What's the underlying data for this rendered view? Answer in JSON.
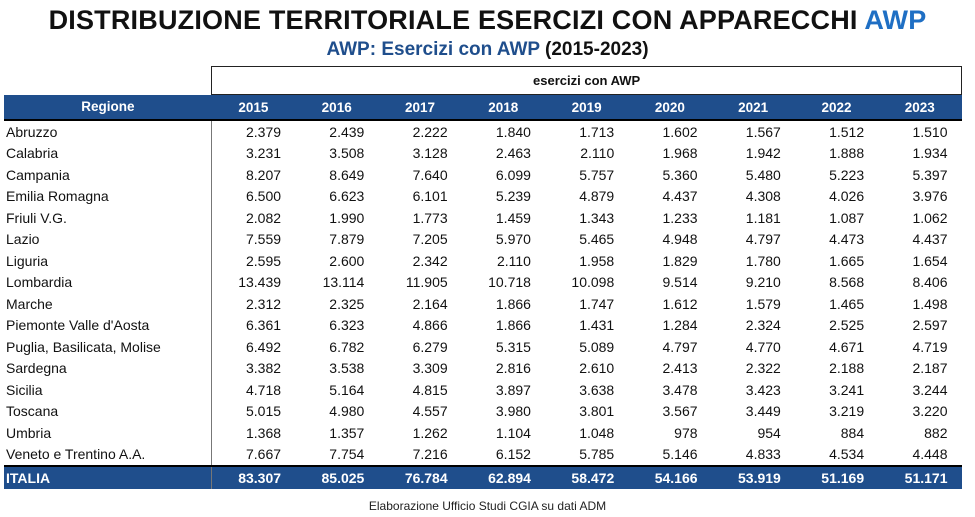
{
  "title": {
    "main": "DISTRIBUZIONE TERRITORIALE ESERCIZI CON APPARECCHI",
    "accent": "AWP"
  },
  "subtitle": {
    "accent": "AWP: Esercizi con AWP",
    "rest": "(2015-2023)"
  },
  "source": "Elaborazione Ufficio Studi CGIA su dati ADM",
  "colors": {
    "header_bg": "#1f4e8c",
    "title_accent": "#1f6fc4"
  },
  "chart_data": {
    "type": "table",
    "group_header": "esercizi con AWP",
    "columns": [
      "Regione",
      "2015",
      "2016",
      "2017",
      "2018",
      "2019",
      "2020",
      "2021",
      "2022",
      "2023"
    ],
    "rows": [
      [
        "Abruzzo",
        "2.379",
        "2.439",
        "2.222",
        "1.840",
        "1.713",
        "1.602",
        "1.567",
        "1.512",
        "1.510"
      ],
      [
        "Calabria",
        "3.231",
        "3.508",
        "3.128",
        "2.463",
        "2.110",
        "1.968",
        "1.942",
        "1.888",
        "1.934"
      ],
      [
        "Campania",
        "8.207",
        "8.649",
        "7.640",
        "6.099",
        "5.757",
        "5.360",
        "5.480",
        "5.223",
        "5.397"
      ],
      [
        "Emilia Romagna",
        "6.500",
        "6.623",
        "6.101",
        "5.239",
        "4.879",
        "4.437",
        "4.308",
        "4.026",
        "3.976"
      ],
      [
        "Friuli V.G.",
        "2.082",
        "1.990",
        "1.773",
        "1.459",
        "1.343",
        "1.233",
        "1.181",
        "1.087",
        "1.062"
      ],
      [
        "Lazio",
        "7.559",
        "7.879",
        "7.205",
        "5.970",
        "5.465",
        "4.948",
        "4.797",
        "4.473",
        "4.437"
      ],
      [
        "Liguria",
        "2.595",
        "2.600",
        "2.342",
        "2.110",
        "1.958",
        "1.829",
        "1.780",
        "1.665",
        "1.654"
      ],
      [
        "Lombardia",
        "13.439",
        "13.114",
        "11.905",
        "10.718",
        "10.098",
        "9.514",
        "9.210",
        "8.568",
        "8.406"
      ],
      [
        "Marche",
        "2.312",
        "2.325",
        "2.164",
        "1.866",
        "1.747",
        "1.612",
        "1.579",
        "1.465",
        "1.498"
      ],
      [
        "Piemonte Valle d'Aosta",
        "6.361",
        "6.323",
        "4.866",
        "1.866",
        "1.431",
        "1.284",
        "2.324",
        "2.525",
        "2.597"
      ],
      [
        "Puglia, Basilicata, Molise",
        "6.492",
        "6.782",
        "6.279",
        "5.315",
        "5.089",
        "4.797",
        "4.770",
        "4.671",
        "4.719"
      ],
      [
        "Sardegna",
        "3.382",
        "3.538",
        "3.309",
        "2.816",
        "2.610",
        "2.413",
        "2.322",
        "2.188",
        "2.187"
      ],
      [
        "Sicilia",
        "4.718",
        "5.164",
        "4.815",
        "3.897",
        "3.638",
        "3.478",
        "3.423",
        "3.241",
        "3.244"
      ],
      [
        "Toscana",
        "5.015",
        "4.980",
        "4.557",
        "3.980",
        "3.801",
        "3.567",
        "3.449",
        "3.219",
        "3.220"
      ],
      [
        "Umbria",
        "1.368",
        "1.357",
        "1.262",
        "1.104",
        "1.048",
        "978",
        "954",
        "884",
        "882"
      ],
      [
        "Veneto e Trentino A.A.",
        "7.667",
        "7.754",
        "7.216",
        "6.152",
        "5.785",
        "5.146",
        "4.833",
        "4.534",
        "4.448"
      ]
    ],
    "total": [
      "ITALIA",
      "83.307",
      "85.025",
      "76.784",
      "62.894",
      "58.472",
      "54.166",
      "53.919",
      "51.169",
      "51.171"
    ]
  }
}
